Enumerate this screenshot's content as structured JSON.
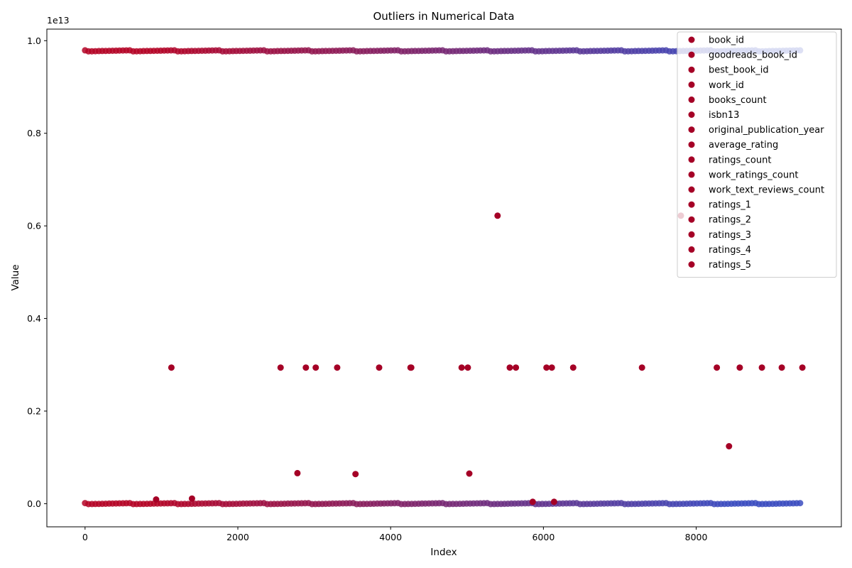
{
  "chart_data": {
    "type": "scatter",
    "title": "Outliers in Numerical Data",
    "xlabel": "Index",
    "ylabel": "Value",
    "offset_text": "1e13",
    "xlim": [
      -500,
      9900
    ],
    "ylim": [
      -0.05,
      1.025
    ],
    "xticks": [
      0,
      2000,
      4000,
      6000,
      8000
    ],
    "xtick_labels": [
      "0",
      "2000",
      "4000",
      "6000",
      "8000"
    ],
    "yticks": [
      0.0,
      0.2,
      0.4,
      0.6,
      0.8,
      1.0
    ],
    "ytick_labels": [
      "0.0",
      "0.2",
      "0.4",
      "0.6",
      "0.8",
      "1.0"
    ],
    "grid": false,
    "legend_position": "top-right",
    "marker_color": "#a50026",
    "colormap_start": "#b40426",
    "colormap_end": "#3b4cc0",
    "series": [
      {
        "name": "book_id"
      },
      {
        "name": "goodreads_book_id"
      },
      {
        "name": "best_book_id"
      },
      {
        "name": "work_id"
      },
      {
        "name": "books_count"
      },
      {
        "name": "isbn13"
      },
      {
        "name": "original_publication_year"
      },
      {
        "name": "average_rating"
      },
      {
        "name": "ratings_count"
      },
      {
        "name": "work_ratings_count"
      },
      {
        "name": "work_text_reviews_count"
      },
      {
        "name": "ratings_1"
      },
      {
        "name": "ratings_2"
      },
      {
        "name": "ratings_3"
      },
      {
        "name": "ratings_4"
      },
      {
        "name": "ratings_5"
      }
    ],
    "bands": [
      {
        "y": 0.978,
        "x_start": 0,
        "x_end": 9400
      },
      {
        "y": 0.0,
        "x_start": 0,
        "x_end": 9400
      }
    ],
    "outliers": [
      {
        "x": 5400,
        "y": 0.622
      },
      {
        "x": 7800,
        "y": 0.622
      },
      {
        "x": 1130,
        "y": 0.294
      },
      {
        "x": 2560,
        "y": 0.294
      },
      {
        "x": 2890,
        "y": 0.294
      },
      {
        "x": 3020,
        "y": 0.294
      },
      {
        "x": 3300,
        "y": 0.294
      },
      {
        "x": 3850,
        "y": 0.294
      },
      {
        "x": 4260,
        "y": 0.294
      },
      {
        "x": 4270,
        "y": 0.294
      },
      {
        "x": 4930,
        "y": 0.294
      },
      {
        "x": 5010,
        "y": 0.294
      },
      {
        "x": 5560,
        "y": 0.294
      },
      {
        "x": 5640,
        "y": 0.294
      },
      {
        "x": 6040,
        "y": 0.294
      },
      {
        "x": 6110,
        "y": 0.294
      },
      {
        "x": 6390,
        "y": 0.294
      },
      {
        "x": 7290,
        "y": 0.294
      },
      {
        "x": 8270,
        "y": 0.294
      },
      {
        "x": 8570,
        "y": 0.294
      },
      {
        "x": 8860,
        "y": 0.294
      },
      {
        "x": 9120,
        "y": 0.294
      },
      {
        "x": 9390,
        "y": 0.294
      },
      {
        "x": 8430,
        "y": 0.124
      },
      {
        "x": 2780,
        "y": 0.066
      },
      {
        "x": 3540,
        "y": 0.064
      },
      {
        "x": 5030,
        "y": 0.065
      },
      {
        "x": 930,
        "y": 0.009
      },
      {
        "x": 1400,
        "y": 0.011
      },
      {
        "x": 5860,
        "y": 0.004
      },
      {
        "x": 6140,
        "y": 0.004
      }
    ]
  }
}
